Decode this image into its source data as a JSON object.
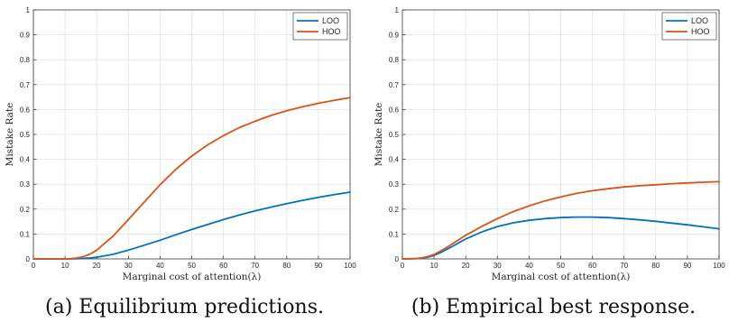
{
  "colors": {
    "LOO": "#0072BD",
    "HOO": "#D95319",
    "grid": "#e3e3e3",
    "axis": "#262626"
  },
  "chart_data": [
    {
      "type": "line",
      "caption": "(a) Equilibrium predictions.",
      "xlabel": "Marginal cost of attention(λ)",
      "ylabel": "Mistake Rate",
      "xlim": [
        0,
        100
      ],
      "ylim": [
        0,
        1
      ],
      "xticks": [
        "0",
        "10",
        "20",
        "30",
        "40",
        "50",
        "60",
        "70",
        "80",
        "90",
        "100"
      ],
      "yticks": [
        "0",
        "0.1",
        "0.2",
        "0.3",
        "0.4",
        "0.5",
        "0.6",
        "0.7",
        "0.8",
        "0.9",
        "1"
      ],
      "grid": true,
      "legend": "top-right",
      "x": [
        0,
        5,
        10,
        12,
        14,
        16,
        18,
        20,
        25,
        30,
        35,
        40,
        45,
        50,
        55,
        60,
        65,
        70,
        75,
        80,
        85,
        90,
        95,
        100
      ],
      "series": [
        {
          "name": "LOO",
          "values": [
            0,
            0,
            0,
            0,
            0.001,
            0.002,
            0.004,
            0.007,
            0.018,
            0.035,
            0.055,
            0.075,
            0.097,
            0.118,
            0.138,
            0.158,
            0.176,
            0.193,
            0.208,
            0.222,
            0.235,
            0.247,
            0.258,
            0.268
          ]
        },
        {
          "name": "HOO",
          "values": [
            0,
            0,
            0,
            0.001,
            0.004,
            0.01,
            0.02,
            0.035,
            0.09,
            0.158,
            0.228,
            0.298,
            0.36,
            0.413,
            0.458,
            0.495,
            0.527,
            0.553,
            0.576,
            0.595,
            0.611,
            0.625,
            0.637,
            0.648
          ]
        }
      ]
    },
    {
      "type": "line",
      "caption": "(b) Empirical best response.",
      "xlabel": "Marginal cost of attention(λ)",
      "ylabel": "Mistake Rate",
      "xlim": [
        0,
        100
      ],
      "ylim": [
        0,
        1
      ],
      "xticks": [
        "0",
        "10",
        "20",
        "30",
        "40",
        "50",
        "60",
        "70",
        "80",
        "90",
        "100"
      ],
      "yticks": [
        "0",
        "0.1",
        "0.2",
        "0.3",
        "0.4",
        "0.5",
        "0.6",
        "0.7",
        "0.8",
        "0.9",
        "1"
      ],
      "grid": true,
      "legend": "top-right",
      "x": [
        0,
        4,
        6,
        8,
        10,
        12,
        15,
        20,
        25,
        30,
        35,
        40,
        45,
        50,
        55,
        60,
        65,
        70,
        75,
        80,
        85,
        90,
        95,
        100
      ],
      "series": [
        {
          "name": "LOO",
          "values": [
            0,
            0.001,
            0.003,
            0.007,
            0.014,
            0.025,
            0.045,
            0.08,
            0.108,
            0.13,
            0.145,
            0.155,
            0.162,
            0.166,
            0.168,
            0.168,
            0.166,
            0.162,
            0.157,
            0.151,
            0.144,
            0.137,
            0.129,
            0.121
          ]
        },
        {
          "name": "HOO",
          "values": [
            0,
            0.001,
            0.004,
            0.009,
            0.018,
            0.031,
            0.054,
            0.095,
            0.13,
            0.162,
            0.19,
            0.213,
            0.233,
            0.249,
            0.263,
            0.274,
            0.282,
            0.289,
            0.294,
            0.298,
            0.302,
            0.305,
            0.308,
            0.31
          ]
        }
      ]
    }
  ]
}
